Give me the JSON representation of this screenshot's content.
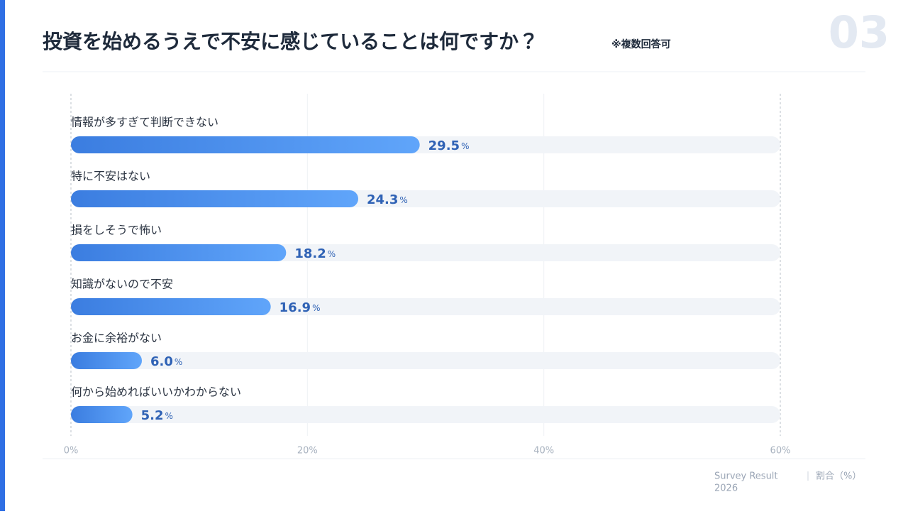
{
  "chart_data": {
    "type": "bar",
    "orientation": "horizontal",
    "title": "投資を始めるうえで不安に感じていることは何ですか？",
    "subtitle": "※複数回答可",
    "page_number": "03",
    "categories": [
      "情報が多すぎて判断できない",
      "特に不安はない",
      "損をしそうで怖い",
      "知識がないので不安",
      "お金に余裕がない",
      "何から始めればいいかわからない"
    ],
    "values": [
      29.5,
      24.3,
      18.2,
      16.9,
      6.0,
      5.2
    ],
    "value_labels": [
      "29.5%",
      "24.3%",
      "18.2%",
      "16.9%",
      "6.0%",
      "5.2%"
    ],
    "color": "#3b7de0",
    "xlim": [
      0,
      60
    ],
    "xticks": [
      {
        "value": 0,
        "label": "0%"
      },
      {
        "value": 20,
        "label": "20%"
      },
      {
        "value": 40,
        "label": "40%"
      },
      {
        "value": 60,
        "label": "60%"
      }
    ],
    "grid": true,
    "source": [
      "Survey Result",
      "2026"
    ],
    "axis_label": "割合（%）"
  }
}
